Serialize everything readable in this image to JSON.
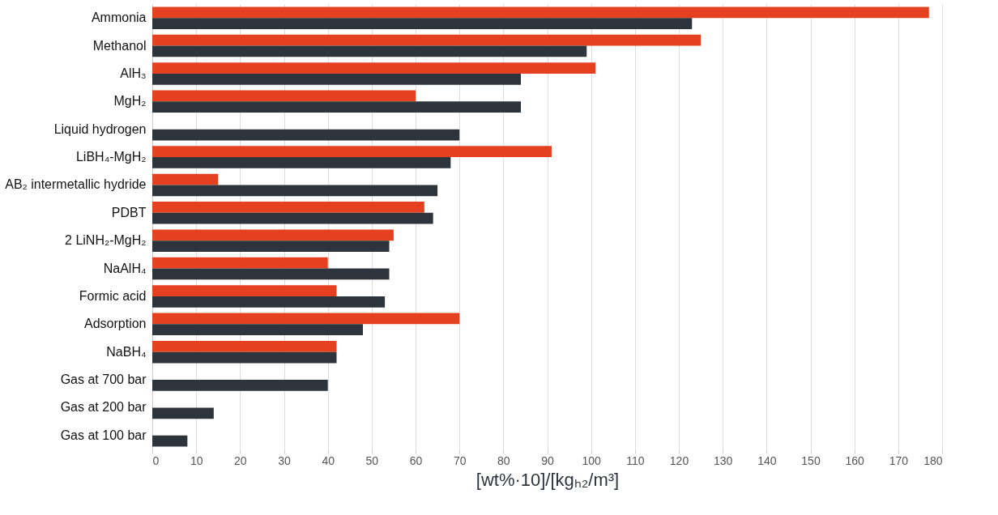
{
  "chart_data": {
    "type": "bar",
    "orientation": "horizontal",
    "xlabel": "[wt%·10]/[kgₕ₂/m³]",
    "categories": [
      "Ammonia",
      "Methanol",
      "AlH₃",
      "MgH₂",
      "Liquid hydrogen",
      "LiBH₄-MgH₂",
      "AB₂ intermetallic hydride",
      "PDBT",
      "2 LiNH₂-MgH₂",
      "NaAlH₄",
      "Formic acid",
      "Adsorption",
      "NaBH₄",
      "Gas at 700 bar",
      "Gas at 200 bar",
      "Gas at 100 bar"
    ],
    "series": [
      {
        "color": "#e5401f",
        "values": [
          177,
          125,
          101,
          60,
          null,
          91,
          15,
          62,
          55,
          40,
          42,
          70,
          42,
          null,
          null,
          null
        ]
      },
      {
        "color": "#2d343b",
        "values": [
          123,
          99,
          84,
          84,
          70,
          68,
          65,
          64,
          54,
          54,
          53,
          48,
          42,
          40,
          14,
          8
        ]
      }
    ],
    "xlim": [
      0,
      180
    ],
    "xticks": [
      0,
      10,
      20,
      30,
      40,
      50,
      60,
      70,
      80,
      90,
      100,
      110,
      120,
      130,
      140,
      150,
      160,
      170,
      180
    ],
    "grid": "x"
  }
}
